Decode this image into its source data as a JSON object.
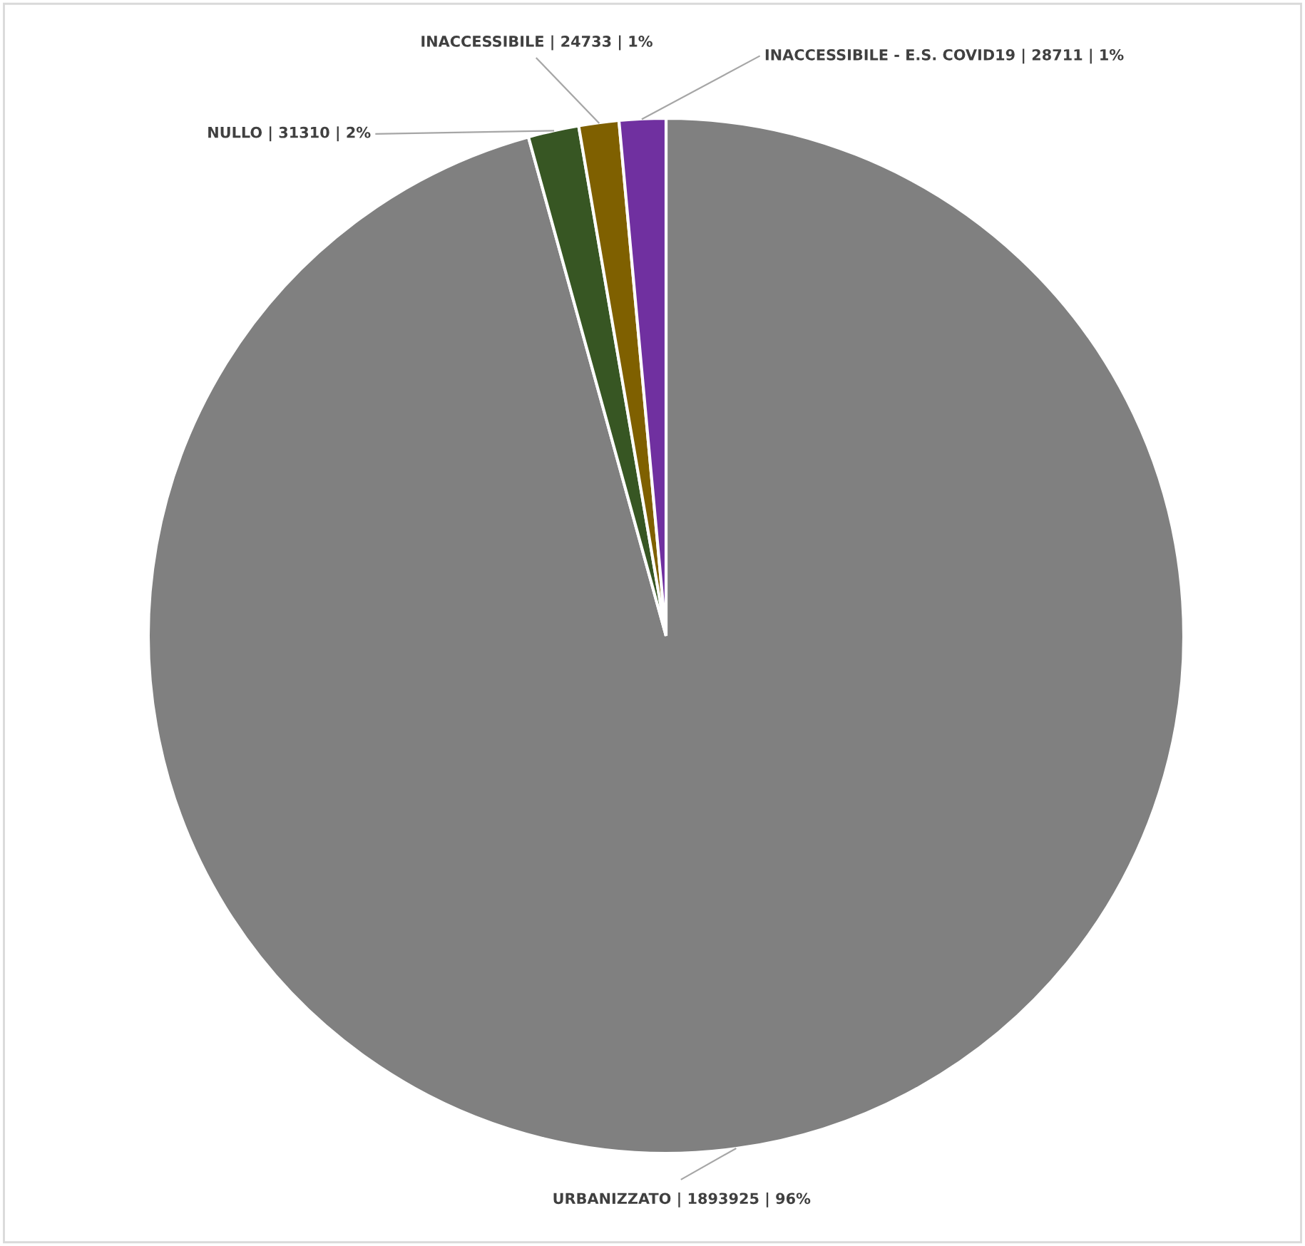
{
  "chart_data": {
    "type": "pie",
    "categories": [
      "URBANIZZATO",
      "NULLO",
      "INACCESSIBILE",
      "INACCESSIBILE - E.S. COVID19"
    ],
    "values": [
      1893925,
      31310,
      24733,
      28711
    ],
    "value_labels": [
      "| 1893925 | 96%",
      "| 31310 | 2%",
      "| 24733 | 1%",
      "| 28711 | 1%"
    ],
    "colors": [
      "#808080",
      "#375623",
      "#7f6000",
      "#7030a0"
    ]
  }
}
